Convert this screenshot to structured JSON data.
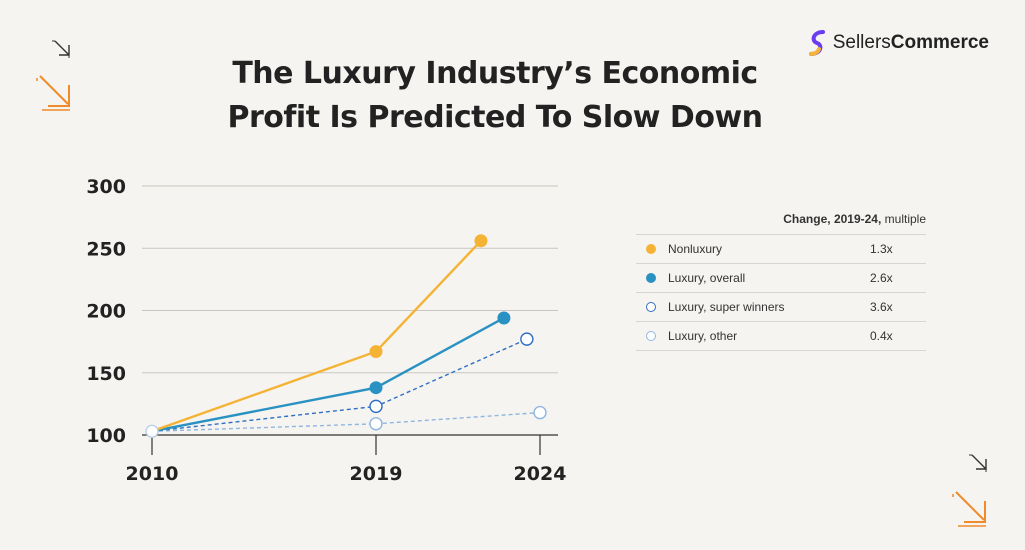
{
  "title_line1": "The Luxury Industry’s Economic",
  "title_line2": "Profit Is Predicted To Slow Down",
  "logo": {
    "part1": "Sellers",
    "part2": "Commerce"
  },
  "table": {
    "header_bold": "Change, 2019-24,",
    "header_rest": " multiple",
    "rows": [
      {
        "label": "Nonluxury",
        "value": "1.3x",
        "marker": "filled",
        "color": "#f5b335"
      },
      {
        "label": "Luxury, overall",
        "value": "2.6x",
        "marker": "filled",
        "color": "#2a92c2"
      },
      {
        "label": "Luxury, super winners",
        "value": "3.6x",
        "marker": "hollow",
        "color": "#2f6fc4"
      },
      {
        "label": "Luxury, other",
        "value": "0.4x",
        "marker": "hollow",
        "color": "#8fb6e0"
      }
    ]
  },
  "chart_data": {
    "type": "line",
    "x_ticks": [
      "2010",
      "2019",
      "2024"
    ],
    "y_ticks": [
      "100",
      "150",
      "200",
      "250",
      "300"
    ],
    "ylim": [
      100,
      300
    ],
    "series": [
      {
        "name": "Nonluxury",
        "color": "#f5b335",
        "style": "solid",
        "marker": "filled",
        "points": [
          [
            2010,
            103
          ],
          [
            2019,
            167
          ],
          [
            2022.2,
            256
          ]
        ]
      },
      {
        "name": "Luxury, overall",
        "color": "#2a92c2",
        "style": "solid",
        "marker": "filled",
        "points": [
          [
            2010,
            103
          ],
          [
            2019,
            138
          ],
          [
            2022.9,
            194
          ]
        ]
      },
      {
        "name": "Luxury, super winners",
        "color": "#2f6fc4",
        "style": "dashed",
        "marker": "hollow",
        "points": [
          [
            2010,
            103
          ],
          [
            2019,
            123
          ],
          [
            2023.6,
            177
          ]
        ]
      },
      {
        "name": "Luxury, other",
        "color": "#8fb6e0",
        "style": "dashed",
        "marker": "hollow",
        "points": [
          [
            2010,
            103
          ],
          [
            2019,
            109
          ],
          [
            2024,
            118
          ]
        ]
      }
    ]
  }
}
